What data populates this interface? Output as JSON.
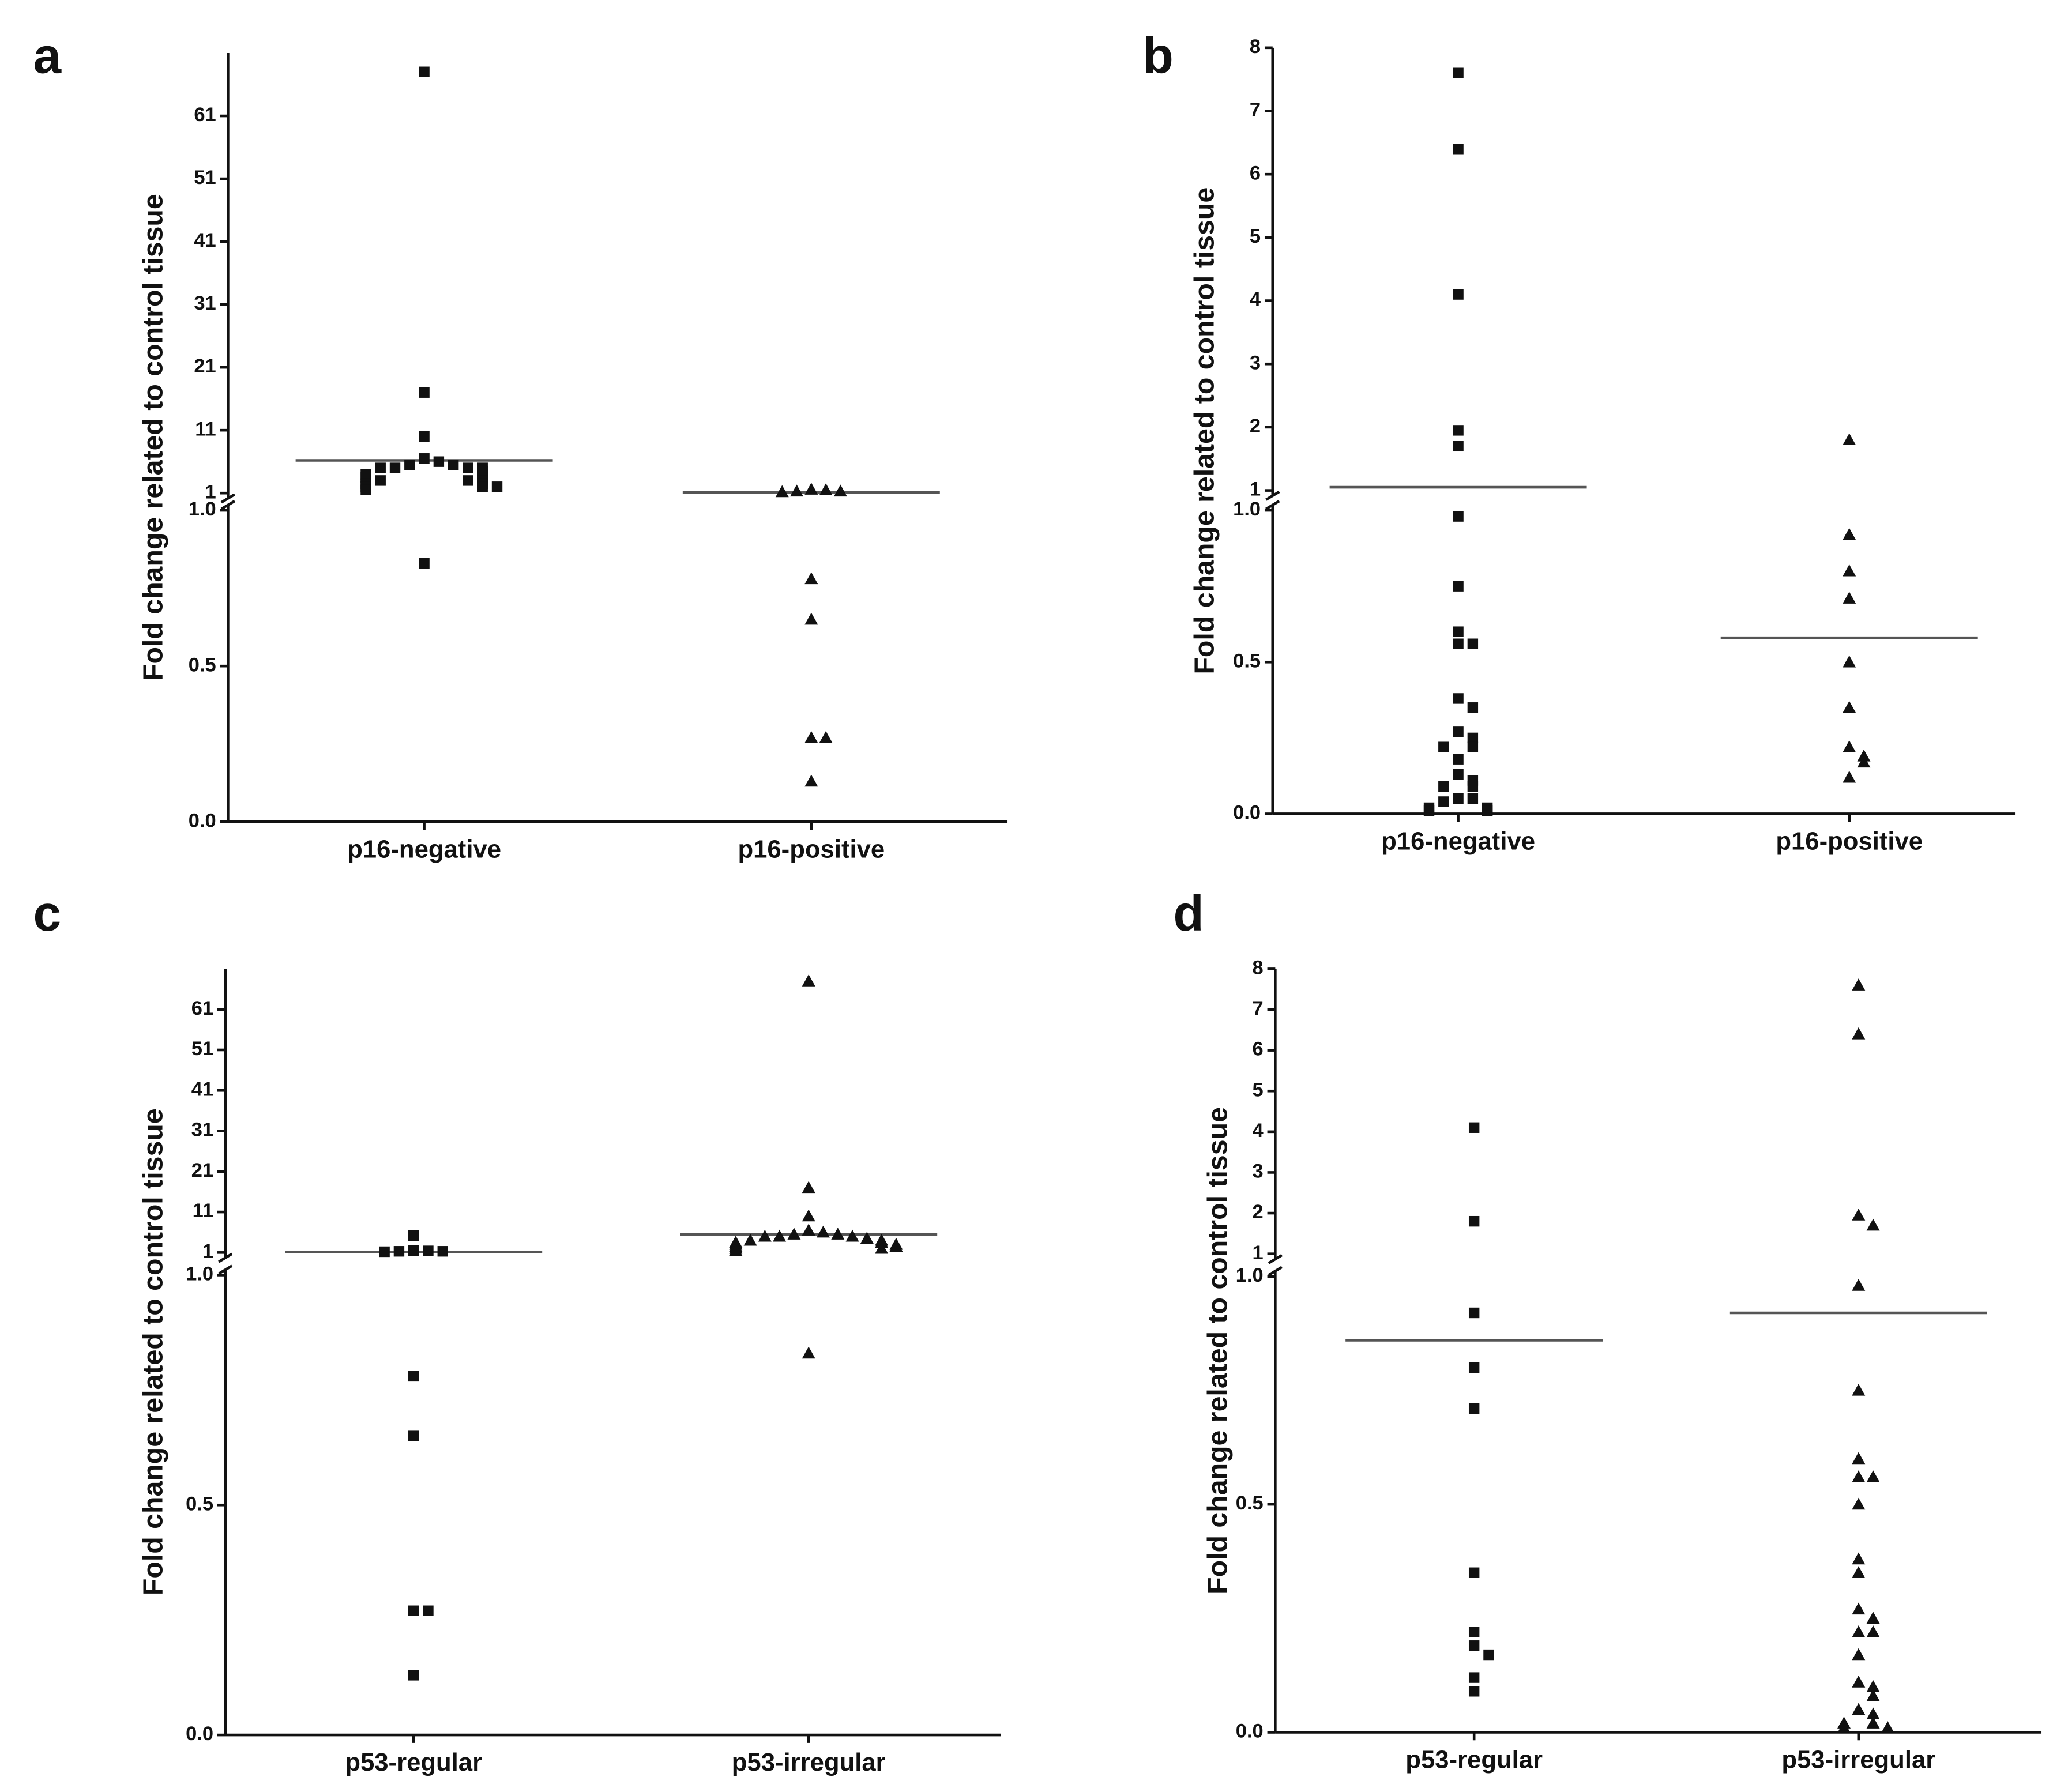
{
  "chart_data": [
    {
      "type": "dot",
      "panel_label": "a",
      "ylabel": "Fold change related to control tissue",
      "categories": [
        "p16-negative",
        "p16-positive"
      ],
      "ylim_lower": [
        0,
        1
      ],
      "yticks_lower": [
        {
          "value": 0,
          "label": "0.0"
        },
        {
          "value": 0.5,
          "label": "0.5"
        },
        {
          "value": 1,
          "label": "1.0"
        }
      ],
      "ylim_upper": [
        1,
        71
      ],
      "yticks_upper": [
        1,
        11,
        21,
        31,
        41,
        51,
        61
      ],
      "groups": [
        {
          "marker": "square",
          "median": 6.2,
          "values": [
            68,
            17,
            10,
            6.5,
            6,
            5.5,
            5.5,
            5,
            5,
            5,
            5,
            4.5,
            4,
            4,
            3.5,
            3.5,
            3,
            3,
            3,
            2.5,
            2.5,
            2,
            2,
            2,
            1.5,
            0.83
          ]
        },
        {
          "marker": "triangle",
          "median": 1.1,
          "values": [
            1.6,
            1.5,
            1.3,
            1.3,
            1.2,
            0.78,
            0.65,
            0.27,
            0.27,
            0.13
          ]
        }
      ]
    },
    {
      "type": "dot",
      "panel_label": "b",
      "ylabel": "Fold change related to control tissue",
      "categories": [
        "p16-negative",
        "p16-positive"
      ],
      "ylim_lower": [
        0,
        1
      ],
      "yticks_lower": [
        {
          "value": 0,
          "label": "0.0"
        },
        {
          "value": 0.5,
          "label": "0.5"
        },
        {
          "value": 1,
          "label": "1.0"
        }
      ],
      "ylim_upper": [
        1,
        8
      ],
      "yticks_upper": [
        1,
        2,
        3,
        4,
        5,
        6,
        7,
        8
      ],
      "groups": [
        {
          "marker": "square",
          "median": 1.05,
          "values": [
            7.6,
            6.4,
            4.1,
            1.95,
            1.7,
            0.98,
            0.75,
            0.6,
            0.56,
            0.56,
            0.38,
            0.35,
            0.27,
            0.25,
            0.22,
            0.22,
            0.18,
            0.13,
            0.11,
            0.09,
            0.09,
            0.05,
            0.05,
            0.04,
            0.02,
            0.02,
            0.01,
            0.01
          ]
        },
        {
          "marker": "triangle",
          "median": 0.58,
          "values": [
            1.8,
            0.92,
            0.8,
            0.71,
            0.5,
            0.35,
            0.22,
            0.19,
            0.17,
            0.12
          ]
        }
      ]
    },
    {
      "type": "dot",
      "panel_label": "c",
      "ylabel": "Fold change related to control tissue",
      "categories": [
        "p53-regular",
        "p53-irregular"
      ],
      "ylim_lower": [
        0,
        1
      ],
      "yticks_lower": [
        {
          "value": 0,
          "label": "0.0"
        },
        {
          "value": 0.5,
          "label": "0.5"
        },
        {
          "value": 1,
          "label": "1.0"
        }
      ],
      "ylim_upper": [
        1,
        71
      ],
      "yticks_upper": [
        1,
        11,
        21,
        31,
        41,
        51,
        61
      ],
      "groups": [
        {
          "marker": "square",
          "median": 1.1,
          "values": [
            5.2,
            1.5,
            1.4,
            1.3,
            1.3,
            1.2,
            0.78,
            0.65,
            0.27,
            0.27,
            0.13
          ]
        },
        {
          "marker": "triangle",
          "median": 5.5,
          "values": [
            68,
            17,
            10,
            6.5,
            6,
            5.5,
            5.5,
            5,
            5,
            5,
            4.5,
            4,
            4,
            3.5,
            3.5,
            3,
            3,
            2.5,
            2.5,
            2,
            2,
            1.5,
            0.83
          ]
        }
      ]
    },
    {
      "type": "dot",
      "panel_label": "d",
      "ylabel": "Fold change related to control tissue",
      "categories": [
        "p53-regular",
        "p53-irregular"
      ],
      "ylim_lower": [
        0,
        1
      ],
      "yticks_lower": [
        {
          "value": 0,
          "label": "0.0"
        },
        {
          "value": 0.5,
          "label": "0.5"
        },
        {
          "value": 1,
          "label": "1.0"
        }
      ],
      "ylim_upper": [
        1,
        8
      ],
      "yticks_upper": [
        1,
        2,
        3,
        4,
        5,
        6,
        7,
        8
      ],
      "groups": [
        {
          "marker": "square",
          "median": 0.86,
          "values": [
            4.1,
            1.8,
            0.92,
            0.8,
            0.71,
            0.35,
            0.22,
            0.19,
            0.17,
            0.12,
            0.09
          ]
        },
        {
          "marker": "triangle",
          "median": 0.92,
          "values": [
            7.6,
            6.4,
            1.95,
            1.7,
            0.98,
            0.75,
            0.6,
            0.56,
            0.56,
            0.5,
            0.38,
            0.35,
            0.27,
            0.25,
            0.22,
            0.22,
            0.17,
            0.11,
            0.1,
            0.08,
            0.05,
            0.04,
            0.02,
            0.02,
            0.01,
            0.01
          ]
        }
      ]
    }
  ]
}
